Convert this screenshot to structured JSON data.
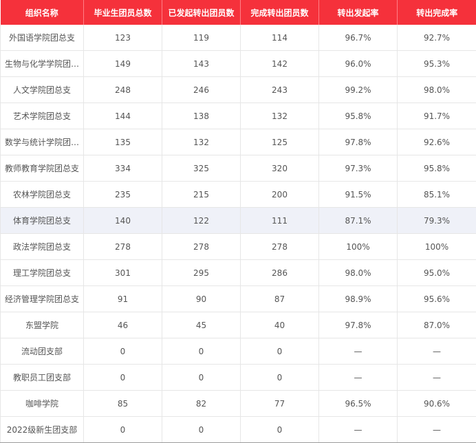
{
  "table": {
    "headers": [
      "组织名称",
      "毕业生团员总数",
      "已发起转出团员数",
      "完成转出团员数",
      "转出发起率",
      "转出完成率"
    ],
    "rows": [
      [
        "外国语学院团总支",
        "123",
        "119",
        "114",
        "96.7%",
        "92.7%"
      ],
      [
        "生物与化学学院团…",
        "149",
        "143",
        "142",
        "96.0%",
        "95.3%"
      ],
      [
        "人文学院团总支",
        "248",
        "246",
        "243",
        "99.2%",
        "98.0%"
      ],
      [
        "艺术学院团总支",
        "144",
        "138",
        "132",
        "95.8%",
        "91.7%"
      ],
      [
        "数学与统计学院团…",
        "135",
        "132",
        "125",
        "97.8%",
        "92.6%"
      ],
      [
        "教师教育学院团总支",
        "334",
        "325",
        "320",
        "97.3%",
        "95.8%"
      ],
      [
        "农林学院团总支",
        "235",
        "215",
        "200",
        "91.5%",
        "85.1%"
      ],
      [
        "体育学院团总支",
        "140",
        "122",
        "111",
        "87.1%",
        "79.3%"
      ],
      [
        "政法学院团总支",
        "278",
        "278",
        "278",
        "100%",
        "100%"
      ],
      [
        "理工学院团总支",
        "301",
        "295",
        "286",
        "98.0%",
        "95.0%"
      ],
      [
        "经济管理学院团总支",
        "91",
        "90",
        "87",
        "98.9%",
        "95.6%"
      ],
      [
        "东盟学院",
        "46",
        "45",
        "40",
        "97.8%",
        "87.0%"
      ],
      [
        "流动团支部",
        "0",
        "0",
        "0",
        "—",
        "—"
      ],
      [
        "教职员工团支部",
        "0",
        "0",
        "0",
        "—",
        "—"
      ],
      [
        "咖啡学院",
        "85",
        "82",
        "77",
        "96.5%",
        "90.6%"
      ],
      [
        "2022级新生团支部",
        "0",
        "0",
        "0",
        "—",
        "—"
      ]
    ],
    "highlighted_row": 7
  },
  "colors": {
    "header_bg": "#f5313b",
    "header_text": "#ffffff",
    "row_highlight": "#eff1f8",
    "text": "#555555"
  }
}
